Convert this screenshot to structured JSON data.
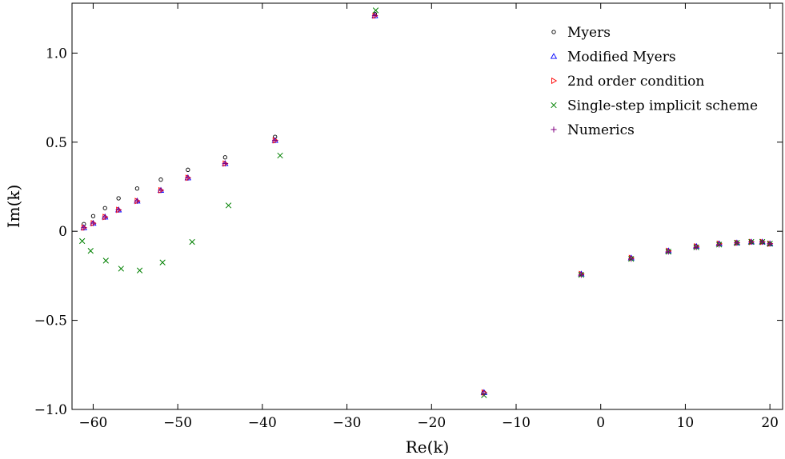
{
  "chart_data": {
    "type": "scatter",
    "title": "",
    "xlabel": "Re(k)",
    "ylabel": "Im(k)",
    "xlim": [
      -62.5,
      21.5
    ],
    "ylim": [
      -1.0,
      1.28
    ],
    "x_ticks": [
      -60,
      -50,
      -40,
      -30,
      -20,
      -10,
      0,
      10,
      20
    ],
    "x_tick_labels": [
      "−60",
      "−50",
      "−40",
      "−30",
      "−20",
      "−10",
      "0",
      "10",
      "20"
    ],
    "y_ticks": [
      -1.0,
      -0.5,
      0,
      0.5,
      1.0
    ],
    "y_tick_labels": [
      "−1.0",
      "−0.5",
      "0",
      "0.5",
      "1.0"
    ],
    "grid": false,
    "legend_position": "top-right",
    "series": [
      {
        "name": "Myers",
        "marker": "circle",
        "color": "#000000",
        "x": [
          -61.1,
          -60.0,
          -58.6,
          -57.0,
          -54.8,
          -52.0,
          -48.8,
          -44.4,
          -38.5,
          -26.7,
          -13.8,
          -2.3,
          3.6,
          8.0,
          11.3,
          14.0,
          16.1,
          17.8,
          19.1,
          20.0
        ],
        "y": [
          0.04,
          0.085,
          0.13,
          0.185,
          0.24,
          0.29,
          0.345,
          0.415,
          0.53,
          1.22,
          -0.905,
          -0.24,
          -0.15,
          -0.11,
          -0.085,
          -0.07,
          -0.065,
          -0.06,
          -0.06,
          -0.07
        ]
      },
      {
        "name": "Modified Myers",
        "marker": "triangle-up",
        "color": "#0000ff",
        "x": [
          -61.1,
          -60.0,
          -58.6,
          -57.0,
          -54.8,
          -52.0,
          -48.8,
          -44.4,
          -38.5,
          -26.7,
          -13.8,
          -2.3,
          3.6,
          8.0,
          11.3,
          14.0,
          16.1,
          17.8,
          19.1,
          20.0
        ],
        "y": [
          0.02,
          0.045,
          0.08,
          0.12,
          0.17,
          0.23,
          0.3,
          0.38,
          0.51,
          1.21,
          -0.905,
          -0.24,
          -0.15,
          -0.11,
          -0.085,
          -0.07,
          -0.065,
          -0.06,
          -0.06,
          -0.07
        ]
      },
      {
        "name": "2nd order condition",
        "marker": "triangle-right",
        "color": "#ff0000",
        "x": [
          -61.1,
          -60.0,
          -58.6,
          -57.0,
          -54.8,
          -52.0,
          -48.8,
          -44.4,
          -38.5,
          -26.7,
          -13.8,
          -2.3,
          3.6,
          8.0,
          11.3,
          14.0,
          16.1,
          17.8,
          19.1,
          20.0
        ],
        "y": [
          0.02,
          0.045,
          0.08,
          0.12,
          0.17,
          0.23,
          0.3,
          0.38,
          0.51,
          1.21,
          -0.905,
          -0.24,
          -0.15,
          -0.11,
          -0.085,
          -0.07,
          -0.065,
          -0.06,
          -0.06,
          -0.07
        ]
      },
      {
        "name": "Single-step implicit scheme",
        "marker": "x",
        "color": "#008000",
        "x": [
          -61.3,
          -60.3,
          -58.5,
          -56.7,
          -54.5,
          -51.8,
          -48.3,
          -44.0,
          -37.9,
          -26.6,
          -13.8,
          -2.3,
          3.6,
          8.0,
          11.3,
          14.0,
          16.1,
          17.8,
          19.1,
          20.0
        ],
        "y": [
          -0.055,
          -0.11,
          -0.165,
          -0.21,
          -0.22,
          -0.175,
          -0.06,
          0.145,
          0.425,
          1.24,
          -0.92,
          -0.245,
          -0.155,
          -0.115,
          -0.09,
          -0.075,
          -0.065,
          -0.06,
          -0.06,
          -0.07
        ]
      },
      {
        "name": "Numerics",
        "marker": "plus",
        "color": "#800080",
        "x": [
          -61.1,
          -60.0,
          -58.6,
          -57.0,
          -54.8,
          -52.0,
          -48.8,
          -44.4,
          -38.5,
          -26.7,
          -13.8,
          -2.3,
          3.6,
          8.0,
          11.3,
          14.0,
          16.1,
          17.8,
          19.1,
          20.0
        ],
        "y": [
          0.02,
          0.045,
          0.08,
          0.12,
          0.17,
          0.23,
          0.3,
          0.38,
          0.51,
          1.21,
          -0.91,
          -0.245,
          -0.155,
          -0.115,
          -0.09,
          -0.075,
          -0.065,
          -0.06,
          -0.06,
          -0.07
        ]
      }
    ]
  }
}
